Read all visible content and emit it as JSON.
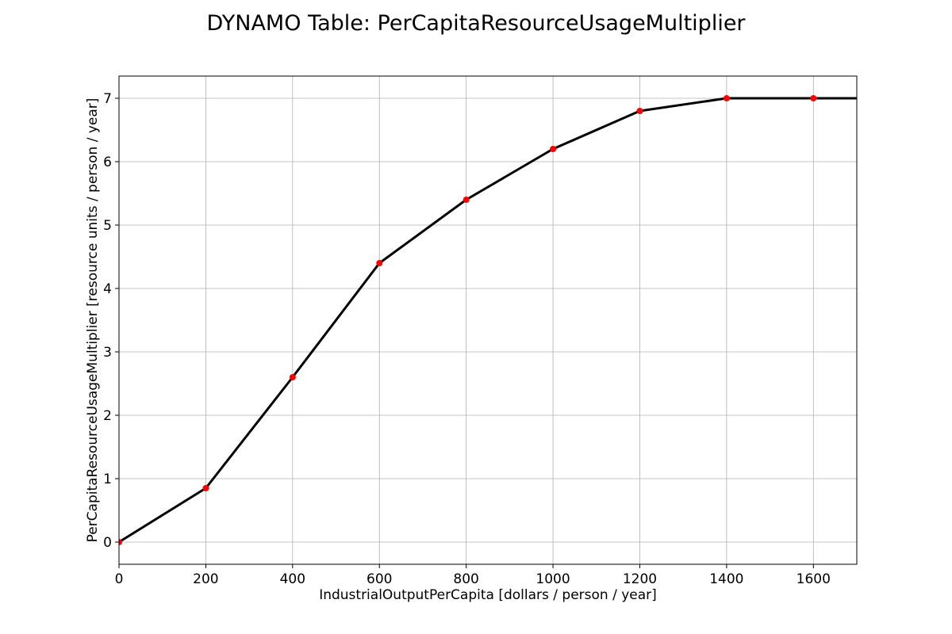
{
  "chart_data": {
    "type": "line",
    "title": "DYNAMO Table: PerCapitaResourceUsageMultiplier",
    "xlabel": "IndustrialOutputPerCapita [dollars / person / year]",
    "ylabel": "PerCapitaResourceUsageMultiplier [resource units / person / year]",
    "xlim": [
      0,
      1700
    ],
    "ylim": [
      -0.35,
      7.35
    ],
    "xticks": [
      0,
      200,
      400,
      600,
      800,
      1000,
      1200,
      1400,
      1600
    ],
    "yticks": [
      0,
      1,
      2,
      3,
      4,
      5,
      6,
      7
    ],
    "grid": true,
    "line_color": "#000000",
    "marker_color": "#ff0000",
    "x": [
      0,
      200,
      400,
      600,
      800,
      1000,
      1200,
      1400,
      1600
    ],
    "y": [
      0,
      0.85,
      2.6,
      4.4,
      5.4,
      6.2,
      6.8,
      7.0,
      7.0
    ],
    "extension_to_x": 1700,
    "extension_y": 7.0
  }
}
